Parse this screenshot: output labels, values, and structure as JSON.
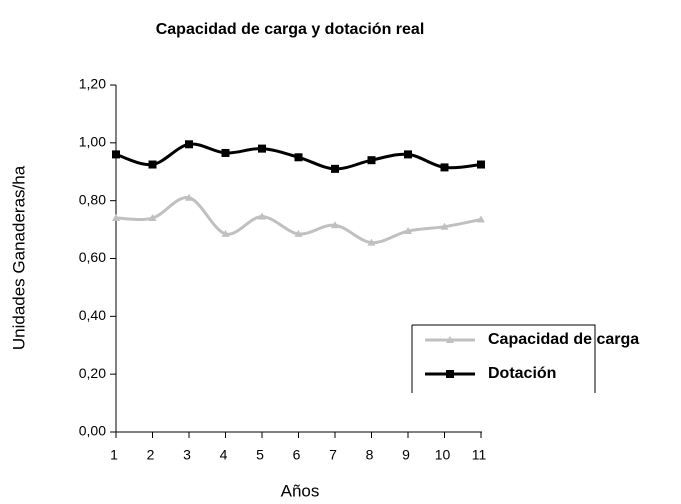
{
  "chart_data": {
    "type": "line",
    "title": "Capacidad de carga y dotación real",
    "x_label": "Años",
    "y_label": "Unidades Ganaderas/ha",
    "categories": [
      "1",
      "2",
      "3",
      "4",
      "5",
      "6",
      "7",
      "8",
      "9",
      "10",
      "11"
    ],
    "series": [
      {
        "name": "Capacidad de carga",
        "color": "#c0c0c0",
        "marker": "triangle",
        "values": [
          0.74,
          0.74,
          0.81,
          0.685,
          0.745,
          0.685,
          0.715,
          0.655,
          0.695,
          0.71,
          0.735
        ]
      },
      {
        "name": "Dotación",
        "color": "#000000",
        "marker": "square",
        "values": [
          0.96,
          0.925,
          0.995,
          0.965,
          0.98,
          0.95,
          0.91,
          0.94,
          0.96,
          0.915,
          0.925
        ]
      }
    ],
    "ylim": [
      0,
      1.2
    ],
    "yticks": [
      {
        "value": 0,
        "label": "0,00"
      },
      {
        "value": 0.2,
        "label": "0,20"
      },
      {
        "value": 0.4,
        "label": "0,40"
      },
      {
        "value": 0.6,
        "label": "0,60"
      },
      {
        "value": 0.8,
        "label": "0,80"
      },
      {
        "value": 1.0,
        "label": "1,00"
      },
      {
        "value": 1.2,
        "label": "1,20"
      }
    ],
    "legend": "right",
    "grid": false
  }
}
